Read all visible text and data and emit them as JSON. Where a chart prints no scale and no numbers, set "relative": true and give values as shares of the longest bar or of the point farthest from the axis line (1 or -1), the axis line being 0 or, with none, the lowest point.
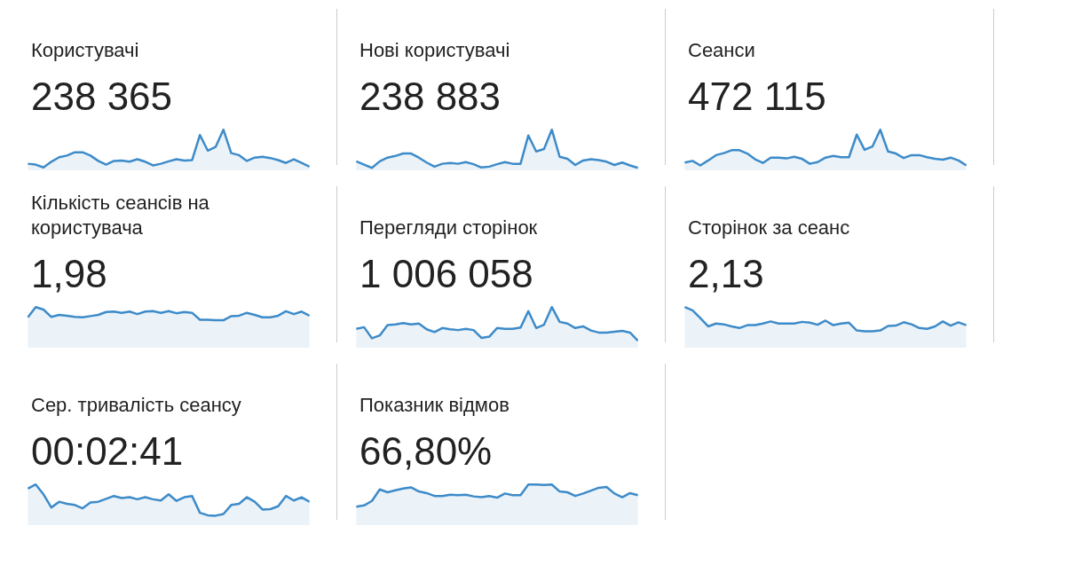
{
  "chart_data": [
    {
      "type": "area",
      "title": "Користувачі",
      "subtitle": "238 365",
      "relative": true,
      "categories": [
        null,
        null,
        null,
        null,
        null,
        null,
        null,
        null,
        null,
        null,
        null,
        null,
        null,
        null,
        null,
        null,
        null,
        null,
        null,
        null,
        null,
        null,
        null,
        null,
        null,
        null,
        null,
        null,
        null,
        null,
        null,
        null,
        null,
        null,
        null,
        null,
        null
      ],
      "series": [
        {
          "color": "#3d8bc9",
          "values": [
            0.17,
            0.15,
            0.08,
            0.22,
            0.33,
            0.37,
            0.45,
            0.45,
            0.37,
            0.24,
            0.15,
            0.24,
            0.25,
            0.22,
            0.28,
            0.22,
            0.13,
            0.17,
            0.23,
            0.28,
            0.25,
            0.26,
            0.87,
            0.49,
            0.58,
            1,
            0.43,
            0.38,
            0.24,
            0.32,
            0.34,
            0.31,
            0.26,
            0.19,
            0.28,
            0.19,
            0.1
          ]
        }
      ]
    },
    {
      "type": "area",
      "title": "Нові користувачі",
      "subtitle": "238 883",
      "relative": true,
      "categories": [
        null,
        null,
        null,
        null,
        null,
        null,
        null,
        null,
        null,
        null,
        null,
        null,
        null,
        null,
        null,
        null,
        null,
        null,
        null,
        null,
        null,
        null,
        null,
        null,
        null,
        null,
        null,
        null,
        null,
        null,
        null,
        null,
        null,
        null,
        null,
        null,
        null
      ],
      "series": [
        {
          "color": "#3d8bc9",
          "values": [
            0.23,
            0.15,
            0.07,
            0.23,
            0.32,
            0.36,
            0.42,
            0.42,
            0.32,
            0.2,
            0.1,
            0.17,
            0.19,
            0.17,
            0.21,
            0.16,
            0.08,
            0.1,
            0.16,
            0.21,
            0.17,
            0.17,
            0.86,
            0.47,
            0.53,
            1,
            0.34,
            0.29,
            0.14,
            0.25,
            0.28,
            0.26,
            0.22,
            0.14,
            0.2,
            0.13,
            0.07
          ]
        }
      ]
    },
    {
      "type": "area",
      "title": "Сеанси",
      "subtitle": "472 115",
      "relative": true,
      "categories": [
        null,
        null,
        null,
        null,
        null,
        null,
        null,
        null,
        null,
        null,
        null,
        null,
        null,
        null,
        null,
        null,
        null,
        null,
        null,
        null,
        null,
        null,
        null,
        null,
        null,
        null,
        null,
        null,
        null,
        null,
        null,
        null,
        null,
        null,
        null,
        null,
        null
      ],
      "series": [
        {
          "color": "#3d8bc9",
          "values": [
            0.2,
            0.24,
            0.13,
            0.25,
            0.38,
            0.43,
            0.5,
            0.5,
            0.42,
            0.28,
            0.19,
            0.32,
            0.32,
            0.3,
            0.34,
            0.29,
            0.17,
            0.21,
            0.32,
            0.36,
            0.33,
            0.33,
            0.88,
            0.51,
            0.59,
            1,
            0.47,
            0.42,
            0.31,
            0.38,
            0.38,
            0.33,
            0.29,
            0.27,
            0.32,
            0.25,
            0.13
          ]
        }
      ]
    },
    {
      "type": "area",
      "title": "Кількість сеансів на користувача",
      "subtitle": "1,98",
      "relative": true,
      "categories": [
        null,
        null,
        null,
        null,
        null,
        null,
        null,
        null,
        null,
        null,
        null,
        null,
        null,
        null,
        null,
        null,
        null,
        null,
        null,
        null,
        null,
        null,
        null,
        null,
        null,
        null,
        null,
        null,
        null,
        null,
        null,
        null,
        null,
        null,
        null,
        null,
        null
      ],
      "series": [
        {
          "color": "#3d8bc9",
          "values": [
            0.75,
            1,
            0.94,
            0.76,
            0.81,
            0.79,
            0.76,
            0.75,
            0.78,
            0.81,
            0.88,
            0.89,
            0.86,
            0.89,
            0.83,
            0.89,
            0.9,
            0.86,
            0.9,
            0.85,
            0.88,
            0.86,
            0.69,
            0.69,
            0.68,
            0.68,
            0.78,
            0.79,
            0.86,
            0.81,
            0.75,
            0.75,
            0.79,
            0.9,
            0.83,
            0.89,
            0.79
          ]
        }
      ]
    },
    {
      "type": "area",
      "title": "Перегляди сторінок",
      "subtitle": "1 006 058",
      "relative": true,
      "categories": [
        null,
        null,
        null,
        null,
        null,
        null,
        null,
        null,
        null,
        null,
        null,
        null,
        null,
        null,
        null,
        null,
        null,
        null,
        null,
        null,
        null,
        null,
        null,
        null,
        null,
        null,
        null,
        null,
        null,
        null,
        null,
        null,
        null,
        null,
        null,
        null,
        null
      ],
      "series": [
        {
          "color": "#3d8bc9",
          "values": [
            0.47,
            0.51,
            0.24,
            0.31,
            0.56,
            0.58,
            0.61,
            0.58,
            0.6,
            0.46,
            0.39,
            0.49,
            0.46,
            0.44,
            0.47,
            0.44,
            0.25,
            0.28,
            0.49,
            0.47,
            0.47,
            0.5,
            0.9,
            0.49,
            0.57,
            1,
            0.64,
            0.6,
            0.49,
            0.53,
            0.43,
            0.38,
            0.38,
            0.4,
            0.42,
            0.38,
            0.18
          ]
        }
      ]
    },
    {
      "type": "area",
      "title": "Сторінок за сеанс",
      "subtitle": "2,13",
      "relative": true,
      "categories": [
        null,
        null,
        null,
        null,
        null,
        null,
        null,
        null,
        null,
        null,
        null,
        null,
        null,
        null,
        null,
        null,
        null,
        null,
        null,
        null,
        null,
        null,
        null,
        null,
        null,
        null,
        null,
        null,
        null,
        null,
        null,
        null,
        null,
        null,
        null,
        null,
        null
      ],
      "series": [
        {
          "color": "#3d8bc9",
          "values": [
            1,
            0.92,
            0.73,
            0.53,
            0.6,
            0.58,
            0.53,
            0.49,
            0.56,
            0.56,
            0.6,
            0.65,
            0.6,
            0.6,
            0.6,
            0.64,
            0.62,
            0.57,
            0.67,
            0.56,
            0.6,
            0.62,
            0.43,
            0.41,
            0.41,
            0.43,
            0.54,
            0.55,
            0.63,
            0.58,
            0.49,
            0.47,
            0.53,
            0.65,
            0.55,
            0.63,
            0.56
          ]
        }
      ]
    },
    {
      "type": "area",
      "title": "Сер. тривалість сеансу",
      "subtitle": "00:02:41",
      "relative": true,
      "categories": [
        null,
        null,
        null,
        null,
        null,
        null,
        null,
        null,
        null,
        null,
        null,
        null,
        null,
        null,
        null,
        null,
        null,
        null,
        null,
        null,
        null,
        null,
        null,
        null,
        null,
        null,
        null,
        null,
        null,
        null,
        null,
        null,
        null,
        null,
        null,
        null,
        null
      ],
      "series": [
        {
          "color": "#3d8bc9",
          "values": [
            0.9,
            1,
            0.76,
            0.44,
            0.58,
            0.53,
            0.5,
            0.42,
            0.56,
            0.58,
            0.65,
            0.72,
            0.67,
            0.69,
            0.64,
            0.69,
            0.64,
            0.61,
            0.76,
            0.6,
            0.69,
            0.72,
            0.31,
            0.25,
            0.24,
            0.28,
            0.5,
            0.53,
            0.69,
            0.58,
            0.39,
            0.4,
            0.47,
            0.72,
            0.61,
            0.69,
            0.58
          ]
        }
      ]
    },
    {
      "type": "area",
      "title": "Показник відмов",
      "subtitle": "66,80%",
      "relative": true,
      "categories": [
        null,
        null,
        null,
        null,
        null,
        null,
        null,
        null,
        null,
        null,
        null,
        null,
        null,
        null,
        null,
        null,
        null,
        null,
        null,
        null,
        null,
        null,
        null,
        null,
        null,
        null,
        null,
        null,
        null,
        null,
        null,
        null,
        null,
        null,
        null,
        null,
        null
      ],
      "series": [
        {
          "color": "#3d8bc9",
          "values": [
            0.46,
            0.49,
            0.6,
            0.88,
            0.81,
            0.86,
            0.9,
            0.93,
            0.83,
            0.79,
            0.72,
            0.72,
            0.75,
            0.74,
            0.75,
            0.71,
            0.69,
            0.72,
            0.68,
            0.78,
            0.74,
            0.74,
            1,
            1,
            0.99,
            1,
            0.83,
            0.81,
            0.72,
            0.78,
            0.85,
            0.92,
            0.94,
            0.78,
            0.69,
            0.79,
            0.74
          ]
        }
      ]
    }
  ]
}
